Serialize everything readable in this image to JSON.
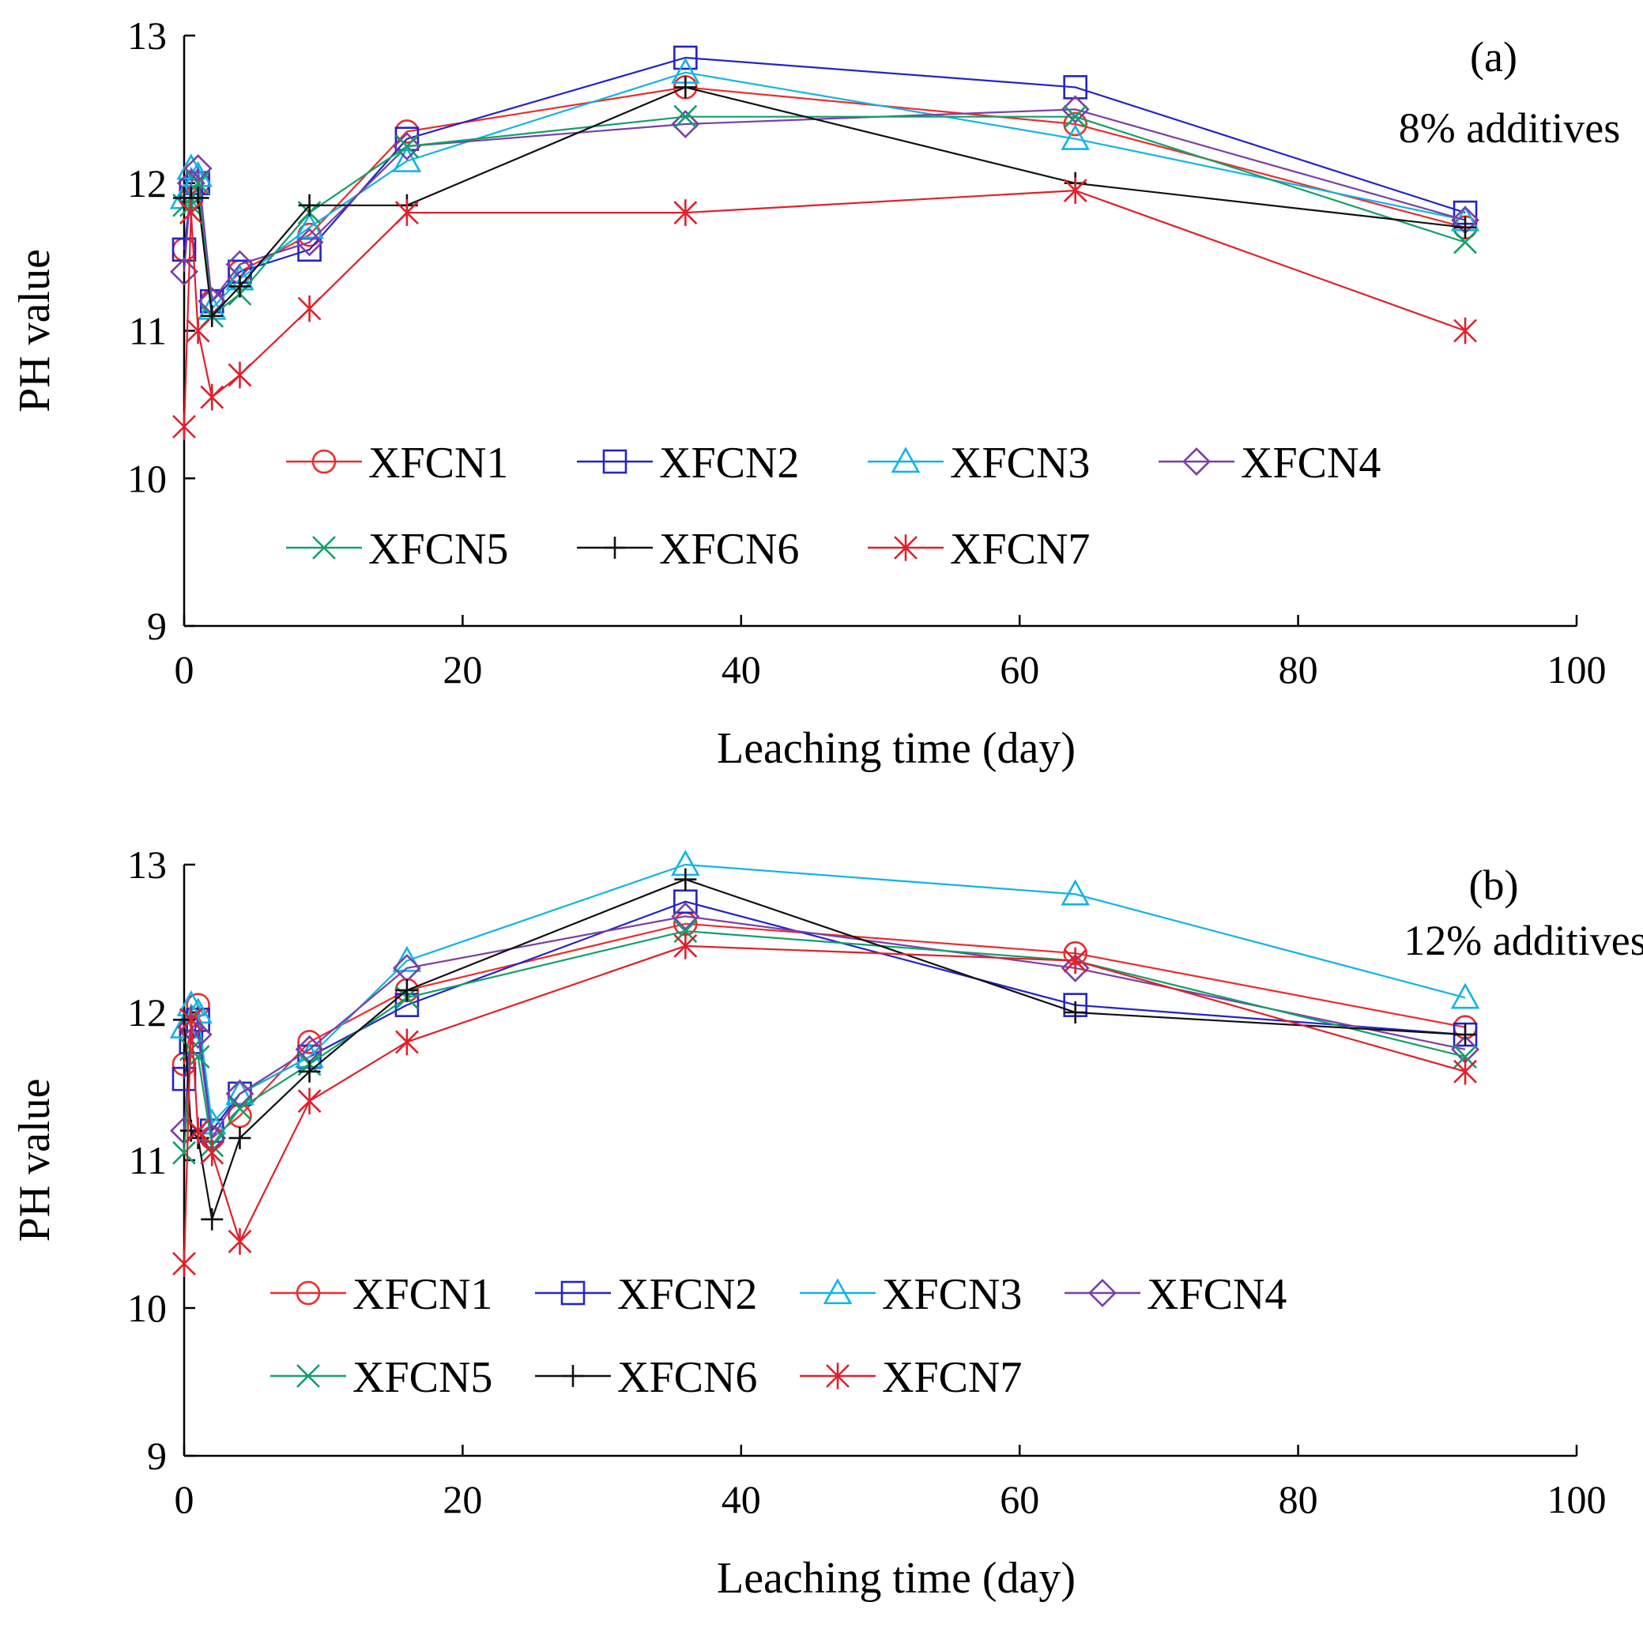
{
  "colors": {
    "XFCN1": "#ee2b2b",
    "XFCN2": "#2424c8",
    "XFCN3": "#10b4e6",
    "XFCN4": "#7a3fa8",
    "XFCN5": "#12a06a",
    "XFCN6": "#111111",
    "XFCN7": "#e0202a"
  },
  "markers": {
    "XFCN1": "circle",
    "XFCN2": "square",
    "XFCN3": "triangle",
    "XFCN4": "diamond",
    "XFCN5": "x-cross",
    "XFCN6": "plus",
    "XFCN7": "asterisk"
  },
  "chart_data": [
    {
      "type": "line",
      "panel_label": "(a)",
      "annotation": "8% additives",
      "xlabel": "Leaching time (day)",
      "ylabel": "PH value",
      "xlim": [
        0,
        100
      ],
      "ylim": [
        9,
        13
      ],
      "xticks": [
        "0",
        "20",
        "40",
        "60",
        "80",
        "100"
      ],
      "yticks": [
        "9",
        "10",
        "11",
        "12",
        "13"
      ],
      "grid": false,
      "legend_position": "lower-center",
      "x": [
        0,
        0.5,
        1,
        2,
        4,
        9,
        16,
        36,
        64,
        92
      ],
      "series": [
        {
          "name": "XFCN1",
          "values": [
            11.55,
            11.9,
            12.0,
            11.2,
            11.4,
            11.65,
            12.35,
            12.65,
            12.4,
            11.7
          ]
        },
        {
          "name": "XFCN2",
          "values": [
            11.55,
            11.95,
            12.0,
            11.2,
            11.4,
            11.55,
            12.3,
            12.85,
            12.65,
            11.8
          ]
        },
        {
          "name": "XFCN3",
          "values": [
            11.9,
            12.1,
            12.05,
            11.15,
            11.35,
            11.7,
            12.15,
            12.75,
            12.3,
            11.75
          ]
        },
        {
          "name": "XFCN4",
          "values": [
            11.4,
            12.0,
            12.1,
            11.2,
            11.45,
            11.6,
            12.25,
            12.4,
            12.5,
            11.75
          ]
        },
        {
          "name": "XFCN5",
          "values": [
            11.85,
            11.85,
            12.0,
            11.1,
            11.25,
            11.8,
            12.25,
            12.45,
            12.45,
            11.6
          ]
        },
        {
          "name": "XFCN6",
          "values": [
            11.9,
            11.9,
            11.9,
            11.1,
            11.3,
            11.85,
            11.85,
            12.65,
            12.0,
            11.7
          ]
        },
        {
          "name": "XFCN7",
          "values": [
            10.35,
            11.8,
            11.0,
            10.55,
            10.7,
            11.15,
            11.8,
            11.8,
            11.95,
            11.0
          ]
        }
      ]
    },
    {
      "type": "line",
      "panel_label": "(b)",
      "annotation": "12% additives",
      "xlabel": "Leaching time (day)",
      "ylabel": "PH value",
      "xlim": [
        0,
        100
      ],
      "ylim": [
        9,
        13
      ],
      "xticks": [
        "0",
        "20",
        "40",
        "60",
        "80",
        "100"
      ],
      "yticks": [
        "9",
        "10",
        "11",
        "12",
        "13"
      ],
      "grid": false,
      "legend_position": "lower-center",
      "x": [
        0,
        0.5,
        1,
        2,
        4,
        9,
        16,
        36,
        64,
        92
      ],
      "series": [
        {
          "name": "XFCN1",
          "values": [
            11.65,
            11.9,
            12.05,
            11.15,
            11.3,
            11.8,
            12.15,
            12.6,
            12.4,
            11.9
          ]
        },
        {
          "name": "XFCN2",
          "values": [
            11.55,
            11.8,
            11.95,
            11.2,
            11.45,
            11.7,
            12.05,
            12.75,
            12.05,
            11.85
          ]
        },
        {
          "name": "XFCN3",
          "values": [
            11.9,
            12.05,
            12.0,
            11.25,
            11.45,
            11.7,
            12.35,
            13.0,
            12.8,
            12.1
          ]
        },
        {
          "name": "XFCN4",
          "values": [
            11.2,
            11.9,
            11.85,
            11.15,
            11.45,
            11.75,
            12.3,
            12.65,
            12.3,
            11.75
          ]
        },
        {
          "name": "XFCN5",
          "values": [
            11.05,
            11.75,
            11.7,
            11.1,
            11.35,
            11.65,
            12.1,
            12.55,
            12.35,
            11.7
          ]
        },
        {
          "name": "XFCN6",
          "values": [
            11.95,
            11.2,
            11.15,
            10.6,
            11.15,
            11.6,
            12.15,
            12.9,
            12.0,
            11.85
          ]
        },
        {
          "name": "XFCN7",
          "values": [
            10.3,
            11.95,
            11.2,
            11.05,
            10.45,
            11.4,
            11.8,
            12.45,
            12.35,
            11.6
          ]
        }
      ]
    }
  ]
}
